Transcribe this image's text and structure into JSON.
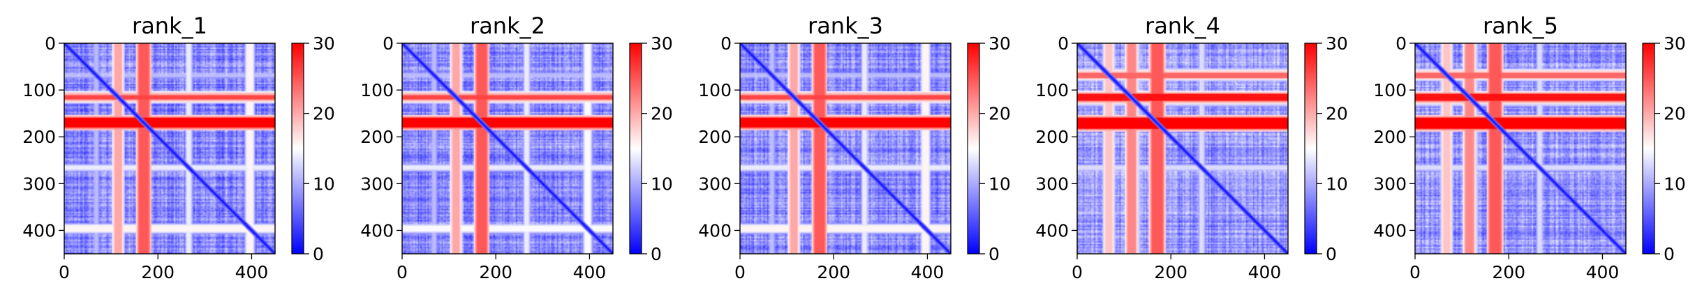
{
  "chart_data": [
    {
      "type": "heatmap",
      "title": "rank_1",
      "xlim": [
        0,
        450
      ],
      "ylim": [
        450,
        0
      ],
      "xticks": [
        0,
        200,
        400
      ],
      "yticks": [
        0,
        100,
        200,
        300,
        400
      ],
      "colorbar": {
        "range": [
          0,
          30
        ],
        "ticks": [
          0,
          10,
          20,
          30
        ],
        "colormap": [
          "#0000ff",
          "#ffffff",
          "#ff0000"
        ]
      },
      "bands": [
        {
          "from": 160,
          "to": 180,
          "value": 27
        },
        {
          "from": 108,
          "to": 122,
          "value": 22
        },
        {
          "from": 390,
          "to": 402,
          "value": 17
        },
        {
          "from": 262,
          "to": 270,
          "value": 15
        },
        {
          "from": 65,
          "to": 72,
          "value": 12
        }
      ],
      "high_rows": [
        {
          "from": 160,
          "to": 180,
          "value": 30
        },
        {
          "from": 112,
          "to": 120,
          "value": 26
        }
      ],
      "background": 8,
      "diagonal": 0
    },
    {
      "type": "heatmap",
      "title": "rank_2",
      "xlim": [
        0,
        450
      ],
      "ylim": [
        450,
        0
      ],
      "xticks": [
        0,
        200,
        400
      ],
      "yticks": [
        0,
        100,
        200,
        300,
        400
      ],
      "colorbar": {
        "range": [
          0,
          30
        ],
        "ticks": [
          0,
          10,
          20,
          30
        ],
        "colormap": [
          "#0000ff",
          "#ffffff",
          "#ff0000"
        ]
      },
      "bands": [
        {
          "from": 160,
          "to": 180,
          "value": 27
        },
        {
          "from": 108,
          "to": 122,
          "value": 22
        },
        {
          "from": 390,
          "to": 402,
          "value": 16
        },
        {
          "from": 262,
          "to": 270,
          "value": 15
        },
        {
          "from": 65,
          "to": 72,
          "value": 12
        }
      ],
      "high_rows": [
        {
          "from": 160,
          "to": 180,
          "value": 30
        },
        {
          "from": 112,
          "to": 120,
          "value": 26
        }
      ],
      "background": 8,
      "diagonal": 0
    },
    {
      "type": "heatmap",
      "title": "rank_3",
      "xlim": [
        0,
        450
      ],
      "ylim": [
        450,
        0
      ],
      "xticks": [
        0,
        200,
        400
      ],
      "yticks": [
        0,
        100,
        200,
        300,
        400
      ],
      "colorbar": {
        "range": [
          0,
          30
        ],
        "ticks": [
          0,
          10,
          20,
          30
        ],
        "colormap": [
          "#0000ff",
          "#ffffff",
          "#ff0000"
        ]
      },
      "bands": [
        {
          "from": 160,
          "to": 180,
          "value": 27
        },
        {
          "from": 108,
          "to": 122,
          "value": 22
        },
        {
          "from": 390,
          "to": 402,
          "value": 17
        },
        {
          "from": 262,
          "to": 270,
          "value": 15
        },
        {
          "from": 65,
          "to": 72,
          "value": 12
        }
      ],
      "high_rows": [
        {
          "from": 160,
          "to": 180,
          "value": 30
        },
        {
          "from": 112,
          "to": 120,
          "value": 26
        }
      ],
      "background": 8,
      "diagonal": 0
    },
    {
      "type": "heatmap",
      "title": "rank_4",
      "xlim": [
        0,
        450
      ],
      "ylim": [
        450,
        0
      ],
      "xticks": [
        0,
        200,
        400
      ],
      "yticks": [
        0,
        100,
        200,
        300,
        400
      ],
      "colorbar": {
        "range": [
          0,
          30
        ],
        "ticks": [
          0,
          10,
          20,
          30
        ],
        "colormap": [
          "#0000ff",
          "#ffffff",
          "#ff0000"
        ]
      },
      "bands": [
        {
          "from": 160,
          "to": 182,
          "value": 27
        },
        {
          "from": 108,
          "to": 124,
          "value": 24
        },
        {
          "from": 60,
          "to": 75,
          "value": 20
        },
        {
          "from": 118,
          "to": 132,
          "value": 14
        },
        {
          "from": 262,
          "to": 270,
          "value": 14
        }
      ],
      "high_rows": [
        {
          "from": 160,
          "to": 182,
          "value": 30
        },
        {
          "from": 108,
          "to": 124,
          "value": 29
        },
        {
          "from": 62,
          "to": 74,
          "value": 24
        }
      ],
      "background": 9,
      "diagonal": 0
    },
    {
      "type": "heatmap",
      "title": "rank_5",
      "xlim": [
        0,
        450
      ],
      "ylim": [
        450,
        0
      ],
      "xticks": [
        0,
        200,
        400
      ],
      "yticks": [
        0,
        100,
        200,
        300,
        400
      ],
      "colorbar": {
        "range": [
          0,
          30
        ],
        "ticks": [
          0,
          10,
          20,
          30
        ],
        "colormap": [
          "#0000ff",
          "#ffffff",
          "#ff0000"
        ]
      },
      "bands": [
        {
          "from": 160,
          "to": 182,
          "value": 27
        },
        {
          "from": 108,
          "to": 124,
          "value": 24
        },
        {
          "from": 60,
          "to": 75,
          "value": 20
        },
        {
          "from": 118,
          "to": 132,
          "value": 14
        },
        {
          "from": 262,
          "to": 270,
          "value": 14
        }
      ],
      "high_rows": [
        {
          "from": 160,
          "to": 182,
          "value": 30
        },
        {
          "from": 108,
          "to": 124,
          "value": 29
        },
        {
          "from": 62,
          "to": 74,
          "value": 24
        }
      ],
      "background": 9,
      "diagonal": 0
    }
  ]
}
